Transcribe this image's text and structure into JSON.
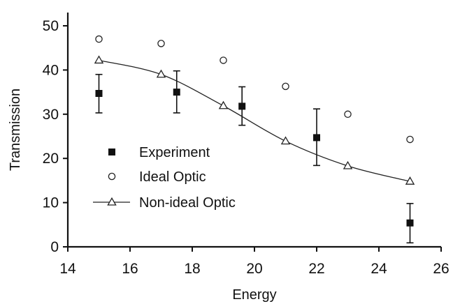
{
  "chart_data": {
    "type": "scatter",
    "xlabel": "Energy",
    "ylabel": "Transmission",
    "xlim": [
      14,
      26
    ],
    "ylim": [
      0,
      50
    ],
    "xticks": [
      14,
      16,
      18,
      20,
      22,
      24,
      26
    ],
    "yticks": [
      0,
      10,
      20,
      30,
      40,
      50
    ],
    "grid": false,
    "legend_position": "center-left",
    "series": [
      {
        "name": "Experiment",
        "marker": "filled-square",
        "points": [
          {
            "x": 15,
            "y": 34.7,
            "err_low": 30.3,
            "err_high": 39.0
          },
          {
            "x": 17.5,
            "y": 35.0,
            "err_low": 30.3,
            "err_high": 39.8
          },
          {
            "x": 19.6,
            "y": 31.8,
            "err_low": 27.5,
            "err_high": 36.2
          },
          {
            "x": 22,
            "y": 24.7,
            "err_low": 18.4,
            "err_high": 31.2
          },
          {
            "x": 25,
            "y": 5.4,
            "err_low": 0.9,
            "err_high": 9.8
          }
        ]
      },
      {
        "name": "Ideal Optic",
        "marker": "open-circle",
        "points": [
          {
            "x": 15,
            "y": 47.0
          },
          {
            "x": 17,
            "y": 46.0
          },
          {
            "x": 19,
            "y": 42.2
          },
          {
            "x": 21,
            "y": 36.3
          },
          {
            "x": 23,
            "y": 30.0
          },
          {
            "x": 25,
            "y": 24.3
          }
        ]
      },
      {
        "name": "Non-ideal Optic",
        "marker": "open-triangle",
        "line": true,
        "points": [
          {
            "x": 15,
            "y": 42.2
          },
          {
            "x": 17,
            "y": 39.0
          },
          {
            "x": 19,
            "y": 31.9
          },
          {
            "x": 21,
            "y": 23.9
          },
          {
            "x": 23,
            "y": 18.3
          },
          {
            "x": 25,
            "y": 14.8
          }
        ]
      }
    ]
  }
}
